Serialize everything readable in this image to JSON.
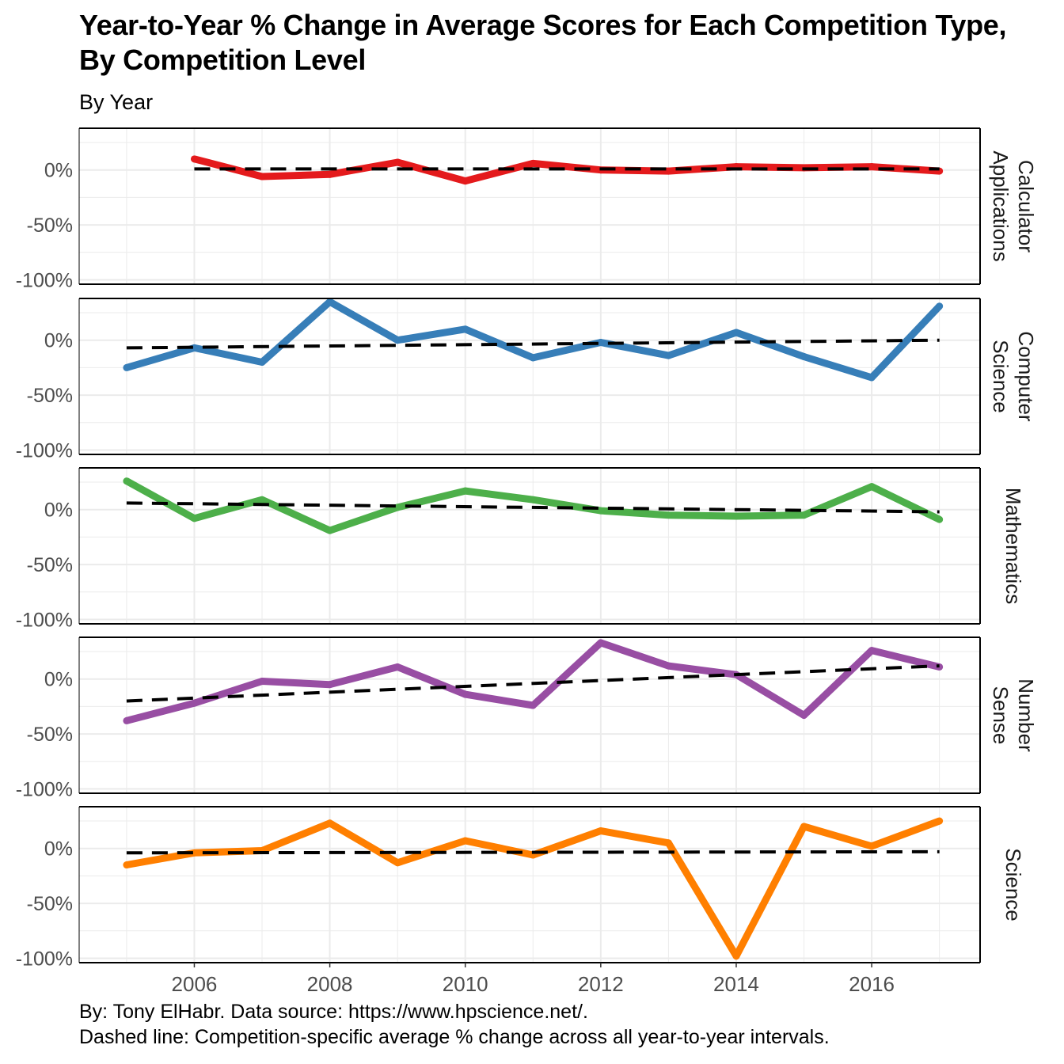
{
  "chart_data": {
    "type": "line",
    "title": "Year-to-Year % Change in Average Scores for Each Competition Type, By Competition Level",
    "subtitle": "By Year",
    "caption_lines": [
      "By: Tony ElHabr. Data source: https://www.hpscience.net/.",
      "Dashed line: Competition-specific average % change across all year-to-year intervals."
    ],
    "xlabel": "",
    "ylabel": "",
    "xlim": [
      2004.3,
      2017.6
    ],
    "ylim": [
      -104,
      38
    ],
    "x_ticks": [
      2006,
      2008,
      2010,
      2012,
      2014,
      2016
    ],
    "x_tick_labels": [
      "2006",
      "2008",
      "2010",
      "2012",
      "2014",
      "2016"
    ],
    "y_ticks": [
      0,
      -50,
      -100
    ],
    "y_tick_labels": [
      "0%",
      "-50%",
      "-100%"
    ],
    "grid": true,
    "facets": [
      {
        "name": "Calculator Applications",
        "strip_lines": [
          "Calculator",
          "Applications"
        ],
        "color": "#E41A1C",
        "x": [
          2006,
          2007,
          2008,
          2009,
          2010,
          2011,
          2012,
          2013,
          2014,
          2015,
          2016,
          2017
        ],
        "values": [
          10,
          -6,
          -4,
          7,
          -10,
          6,
          0,
          -1,
          3,
          2,
          3,
          -1
        ],
        "avg_line": {
          "x": [
            2006,
            2017
          ],
          "values": [
            1,
            1
          ]
        }
      },
      {
        "name": "Computer Science",
        "strip_lines": [
          "Computer",
          "Science"
        ],
        "color": "#377EB8",
        "x": [
          2005,
          2006,
          2007,
          2008,
          2009,
          2010,
          2011,
          2012,
          2013,
          2014,
          2015,
          2016,
          2017
        ],
        "values": [
          -25,
          -7,
          -20,
          35,
          0,
          10,
          -16,
          -2,
          -14,
          7,
          -15,
          -34,
          31
        ],
        "avg_line": {
          "x": [
            2005,
            2017
          ],
          "values": [
            -7,
            0
          ]
        }
      },
      {
        "name": "Mathematics",
        "strip_lines": [
          "Mathematics"
        ],
        "color": "#4DAF4A",
        "x": [
          2005,
          2006,
          2007,
          2008,
          2009,
          2010,
          2011,
          2012,
          2013,
          2014,
          2015,
          2016,
          2017
        ],
        "values": [
          26,
          -8,
          9,
          -19,
          2,
          17,
          9,
          -1,
          -5,
          -6,
          -5,
          21,
          -9
        ],
        "avg_line": {
          "x": [
            2005,
            2017
          ],
          "values": [
            6,
            -2
          ]
        }
      },
      {
        "name": "Number Sense",
        "strip_lines": [
          "Number",
          "Sense"
        ],
        "color": "#984EA3",
        "x": [
          2005,
          2006,
          2007,
          2008,
          2009,
          2010,
          2011,
          2012,
          2013,
          2014,
          2015,
          2016,
          2017
        ],
        "values": [
          -38,
          -22,
          -2,
          -5,
          11,
          -14,
          -24,
          33,
          12,
          4,
          -33,
          26,
          11
        ],
        "avg_line": {
          "x": [
            2005,
            2017
          ],
          "values": [
            -20,
            12
          ]
        }
      },
      {
        "name": "Science",
        "strip_lines": [
          "Science"
        ],
        "color": "#FF7F00",
        "x": [
          2005,
          2006,
          2007,
          2008,
          2009,
          2010,
          2011,
          2012,
          2013,
          2014,
          2015,
          2016,
          2017
        ],
        "values": [
          -15,
          -4,
          -2,
          23,
          -13,
          7,
          -6,
          16,
          5,
          -98,
          20,
          2,
          25
        ],
        "avg_line": {
          "x": [
            2005,
            2017
          ],
          "values": [
            -4,
            -3
          ]
        }
      }
    ]
  }
}
